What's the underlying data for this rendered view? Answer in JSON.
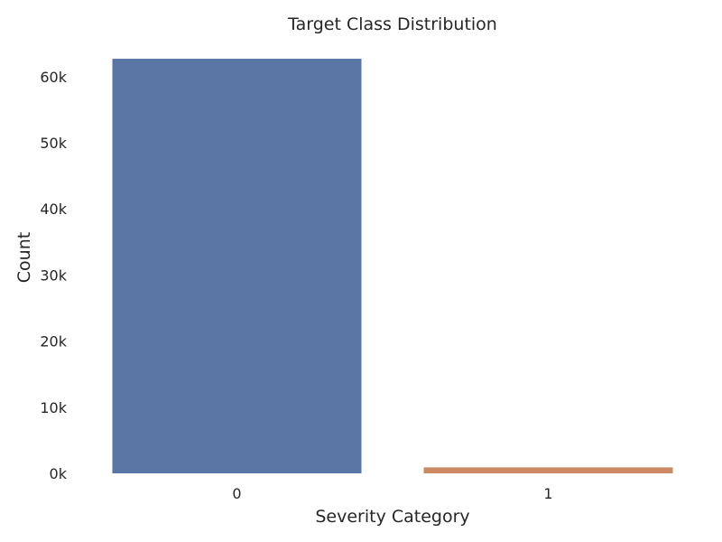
{
  "chart_data": {
    "type": "bar",
    "title": "Target Class Distribution",
    "xlabel": "Severity Category",
    "ylabel": "Count",
    "categories": [
      "0",
      "1"
    ],
    "values": [
      62700,
      900
    ],
    "colors": [
      "#5975a4",
      "#cc8963"
    ],
    "ylim": [
      0,
      63000
    ],
    "yticks": [
      0,
      10000,
      20000,
      30000,
      40000,
      50000,
      60000
    ],
    "ytick_labels": [
      "0k",
      "10k",
      "20k",
      "30k",
      "40k",
      "50k",
      "60k"
    ],
    "grid": false
  }
}
